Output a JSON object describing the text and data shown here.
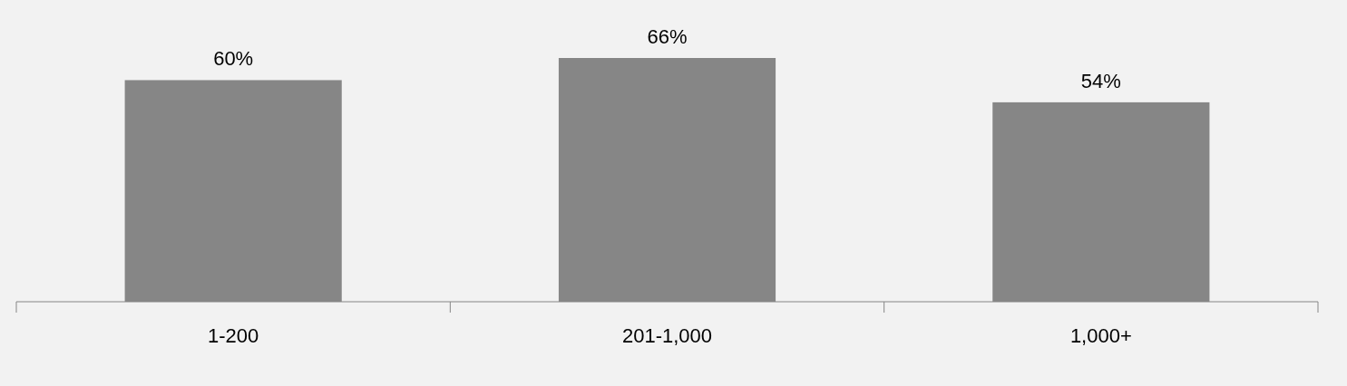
{
  "chart_data": {
    "type": "bar",
    "categories": [
      "1-200",
      "201-1,000",
      "1,000+"
    ],
    "values": [
      60,
      66,
      54
    ],
    "value_labels": [
      "60%",
      "66%",
      "54%"
    ],
    "color": "#868686"
  }
}
